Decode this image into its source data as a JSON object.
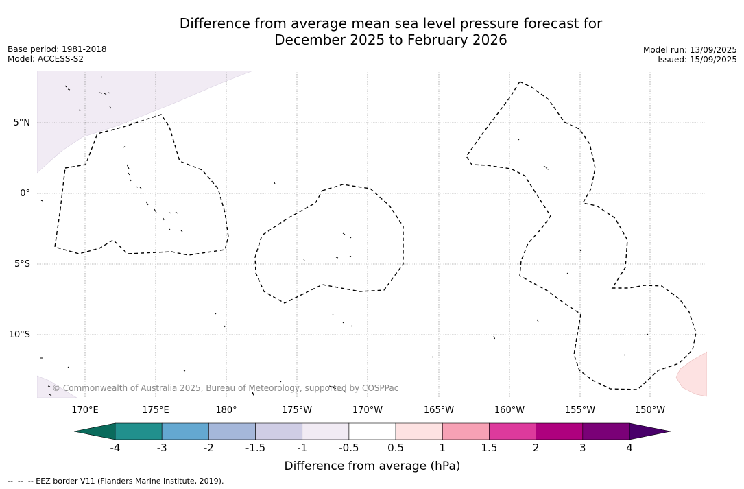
{
  "title_line1": "Difference from average mean sea level pressure forecast for",
  "title_line2": "December 2025 to February 2026",
  "base_period": "Base period: 1981-2018",
  "model": "Model: ACCESS-S2",
  "model_run": "Model run: 13/09/2025",
  "issued": "Issued: 15/09/2025",
  "copyright": "© Commonwealth of Australia 2025, Bureau of Meteorology, supported by COSPPac",
  "map": {
    "lat_labels": [
      "5°N",
      "0°",
      "5°S",
      "10°S"
    ],
    "lon_labels": [
      "170°E",
      "175°E",
      "180°",
      "175°W",
      "170°W",
      "165°W",
      "160°W",
      "155°W",
      "150°W"
    ],
    "gridlines": true,
    "boundary_style": "dashed EEZ border"
  },
  "colorbar": {
    "label": "Difference from average (hPa)",
    "tick_labels": [
      "-4",
      "-3",
      "-2",
      "-1.5",
      "-1",
      "-0.5",
      "0.5",
      "1",
      "1.5",
      "2",
      "3",
      "4"
    ],
    "colors": [
      "#21908d",
      "#64a8d1",
      "#a5b7da",
      "#cfcde5",
      "#f1ebf4",
      "#ffffff",
      "#fde2e2",
      "#f7a1b5",
      "#dd3a9c",
      "#ae017e",
      "#7a0177"
    ],
    "extend_low_color": "#0a6b5c",
    "extend_high_color": "#49006a"
  },
  "eez_note": "--  --  -- EEZ border V11 (Flanders Marine Institute, 2019)."
}
